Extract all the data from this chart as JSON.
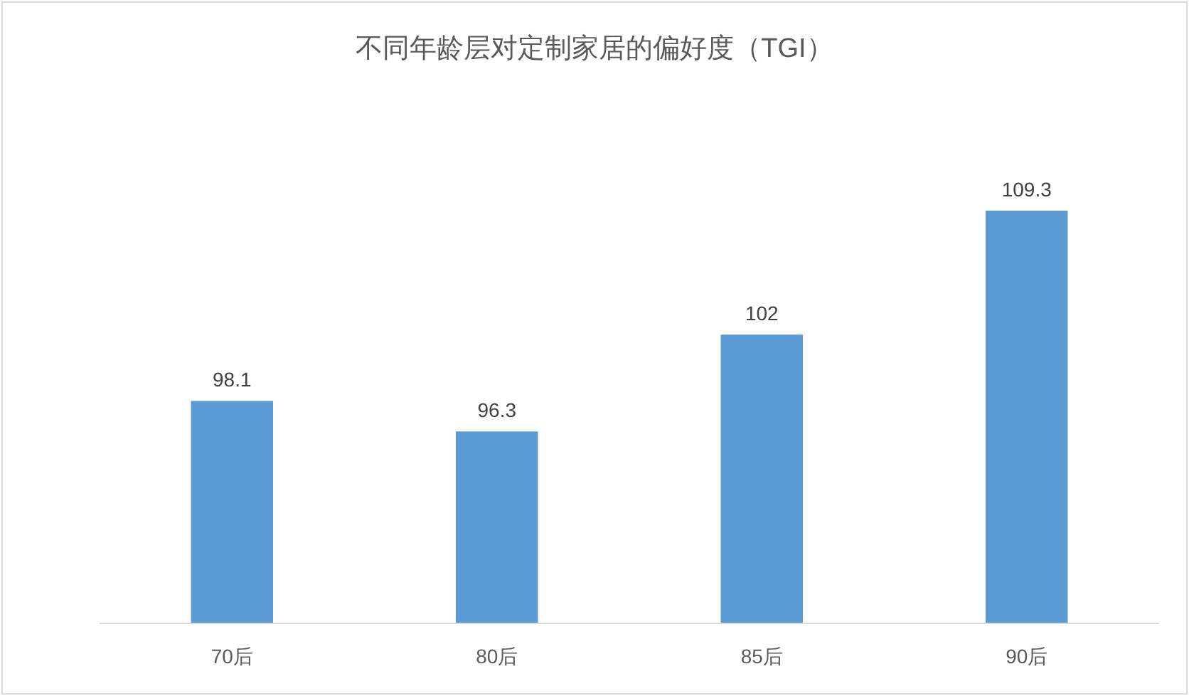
{
  "chart_data": {
    "type": "bar",
    "title": "不同年龄层对定制家居的偏好度（TGI）",
    "categories": [
      "70后",
      "80后",
      "85后",
      "90后"
    ],
    "values": [
      98.1,
      96.3,
      102,
      109.3
    ],
    "color": "#5b9bd5",
    "ylim": [
      85,
      109.3
    ],
    "tick_labels": "x",
    "data_labels": true
  }
}
